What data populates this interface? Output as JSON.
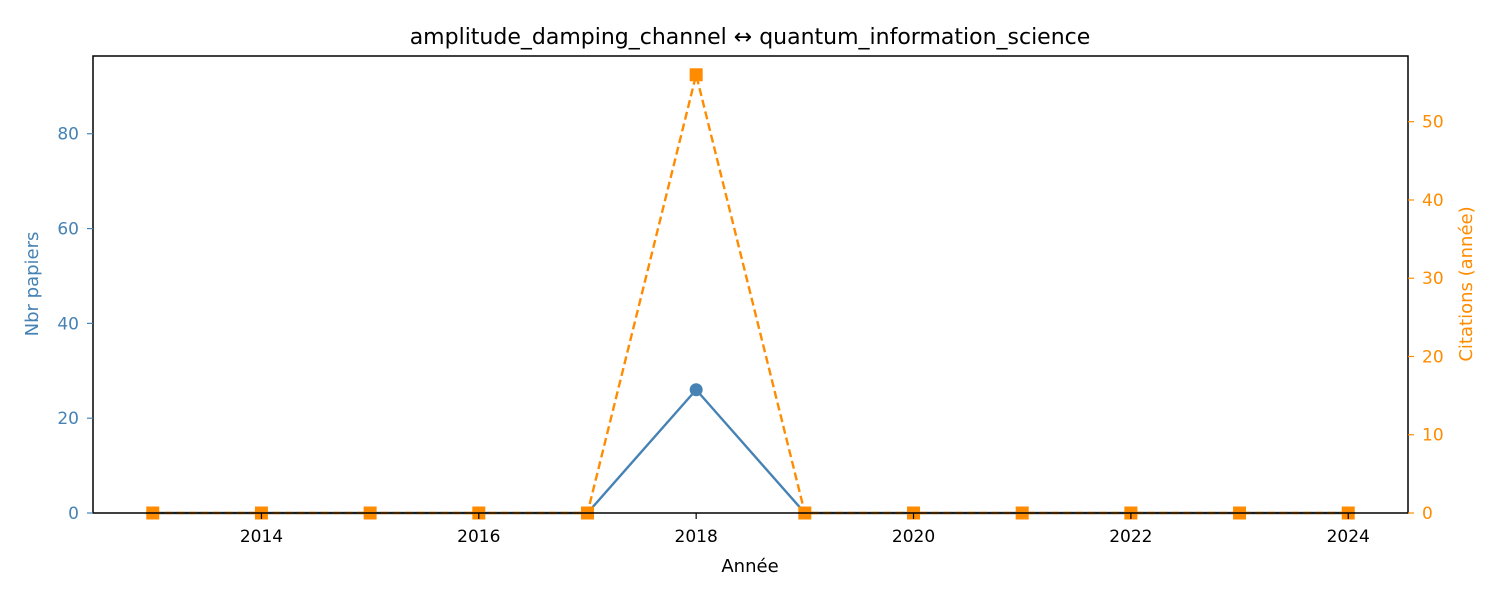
{
  "chart_data": {
    "type": "line",
    "title": "amplitude_damping_channel  ↔  quantum_information_science",
    "xlabel": "Année",
    "ylabel_left": "Nbr papiers",
    "ylabel_right": "Citations (année)",
    "x": [
      2013,
      2014,
      2015,
      2016,
      2017,
      2018,
      2019,
      2020,
      2021,
      2022,
      2023,
      2024
    ],
    "xlim": [
      2012.45,
      2024.55
    ],
    "xticks": [
      2014,
      2016,
      2018,
      2020,
      2022,
      2024
    ],
    "ylim_left": [
      0,
      96.4
    ],
    "yticks_left": [
      0,
      20,
      40,
      60,
      80
    ],
    "ylim_right": [
      0,
      58.4
    ],
    "yticks_right": [
      0,
      10,
      20,
      30,
      40,
      50
    ],
    "grid": false,
    "series": [
      {
        "axis": "left",
        "color": "#4682b4",
        "marker": "circle",
        "style": "solid",
        "values": [
          0,
          0,
          0,
          0,
          0,
          26,
          0,
          0,
          0,
          0,
          0,
          0
        ]
      },
      {
        "axis": "right",
        "color": "#ff8c00",
        "marker": "square",
        "style": "dashed",
        "values": [
          0,
          0,
          0,
          0,
          0,
          56,
          0,
          0,
          0,
          0,
          0,
          0
        ]
      }
    ],
    "colors": {
      "left_axis": "#4682b4",
      "right_axis": "#ff8c00",
      "axes": "#000000"
    }
  }
}
